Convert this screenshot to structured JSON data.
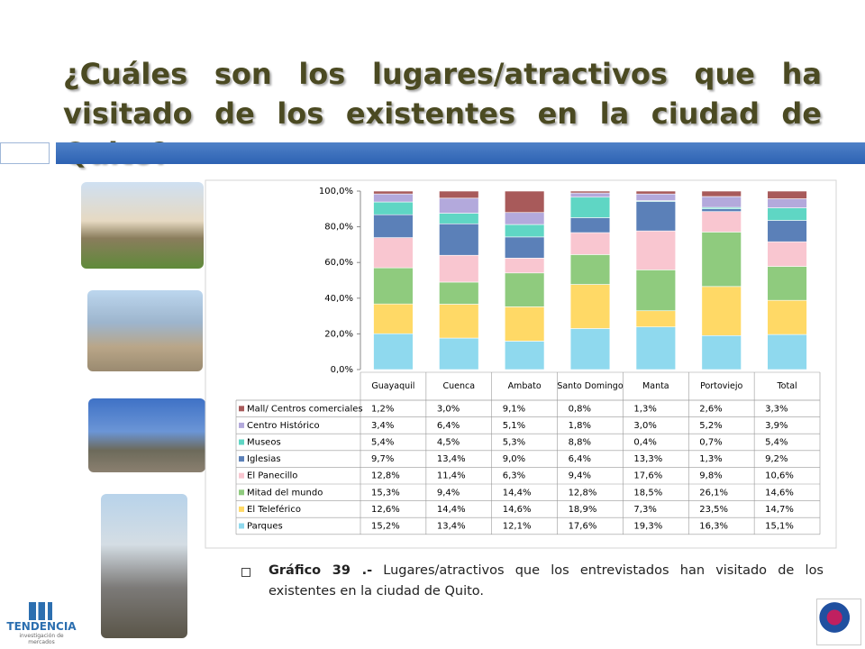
{
  "header": {
    "title": "¿Cuáles son los lugares/atractivos que ha visitado de los existentes en la ciudad de Quito?"
  },
  "chart_data": {
    "type": "bar",
    "stacking": "percent",
    "categories": [
      "Guayaquil",
      "Cuenca",
      "Ambato",
      "Santo Domingo",
      "Manta",
      "Portoviejo",
      "Total"
    ],
    "series": [
      {
        "name": "Mall/ Centros comerciales",
        "color": "#a85a5a",
        "values": [
          1.2,
          3.0,
          9.1,
          0.8,
          1.3,
          2.6,
          3.3
        ],
        "value_labels": [
          "1,2%",
          "3,0%",
          "9,1%",
          "0,8%",
          "1,3%",
          "2,6%",
          "3,3%"
        ]
      },
      {
        "name": "Centro Histórico",
        "color": "#b3a9dc",
        "values": [
          3.4,
          6.4,
          5.1,
          1.8,
          3.0,
          5.2,
          3.9
        ],
        "value_labels": [
          "3,4%",
          "6,4%",
          "5,1%",
          "1,8%",
          "3,0%",
          "5,2%",
          "3,9%"
        ]
      },
      {
        "name": "Museos",
        "color": "#5fd6c4",
        "values": [
          5.4,
          4.5,
          5.3,
          8.8,
          0.4,
          0.7,
          5.4
        ],
        "value_labels": [
          "5,4%",
          "4,5%",
          "5,3%",
          "8,8%",
          "0,4%",
          "0,7%",
          "5,4%"
        ]
      },
      {
        "name": "Iglesias",
        "color": "#5b80b8",
        "values": [
          9.7,
          13.4,
          9.0,
          6.4,
          13.3,
          1.3,
          9.2
        ],
        "value_labels": [
          "9,7%",
          "13,4%",
          "9,0%",
          "6,4%",
          "13,3%",
          "1,3%",
          "9,2%"
        ]
      },
      {
        "name": "El Panecillo",
        "color": "#f9c6d0",
        "values": [
          12.8,
          11.4,
          6.3,
          9.4,
          17.6,
          9.8,
          10.6
        ],
        "value_labels": [
          "12,8%",
          "11,4%",
          "6,3%",
          "9,4%",
          "17,6%",
          "9,8%",
          "10,6%"
        ]
      },
      {
        "name": "Mitad del mundo",
        "color": "#8fcb7e",
        "values": [
          15.3,
          9.4,
          14.4,
          12.8,
          18.5,
          26.1,
          14.6
        ],
        "value_labels": [
          "15,3%",
          "9,4%",
          "14,4%",
          "12,8%",
          "18,5%",
          "26,1%",
          "14,6%"
        ]
      },
      {
        "name": "El Teleférico",
        "color": "#ffd966",
        "values": [
          12.6,
          14.4,
          14.6,
          18.9,
          7.3,
          23.5,
          14.7
        ],
        "value_labels": [
          "12,6%",
          "14,4%",
          "14,6%",
          "18,9%",
          "7,3%",
          "23,5%",
          "14,7%"
        ]
      },
      {
        "name": "Parques",
        "color": "#8fd9ee",
        "values": [
          15.2,
          13.4,
          12.1,
          17.6,
          19.3,
          16.3,
          15.1
        ],
        "value_labels": [
          "15,2%",
          "13,4%",
          "12,1%",
          "17,6%",
          "19,3%",
          "16,3%",
          "15,1%"
        ]
      }
    ],
    "ylim": [
      0,
      100
    ],
    "yticks": [
      {
        "value": 0,
        "label": "0,0%"
      },
      {
        "value": 20,
        "label": "20,0%"
      },
      {
        "value": 40,
        "label": "40,0%"
      },
      {
        "value": 60,
        "label": "60,0%"
      },
      {
        "value": 80,
        "label": "80,0%"
      },
      {
        "value": 100,
        "label": "100,0%"
      }
    ],
    "grid": false
  },
  "caption": {
    "label": "Gráfico 39 .-",
    "text": "Lugares/atractivos que los entrevistados han visitado de los existentes en la ciudad de Quito."
  },
  "logo": {
    "name": "TENDENCIA",
    "tagline": "investigación de mercados"
  }
}
